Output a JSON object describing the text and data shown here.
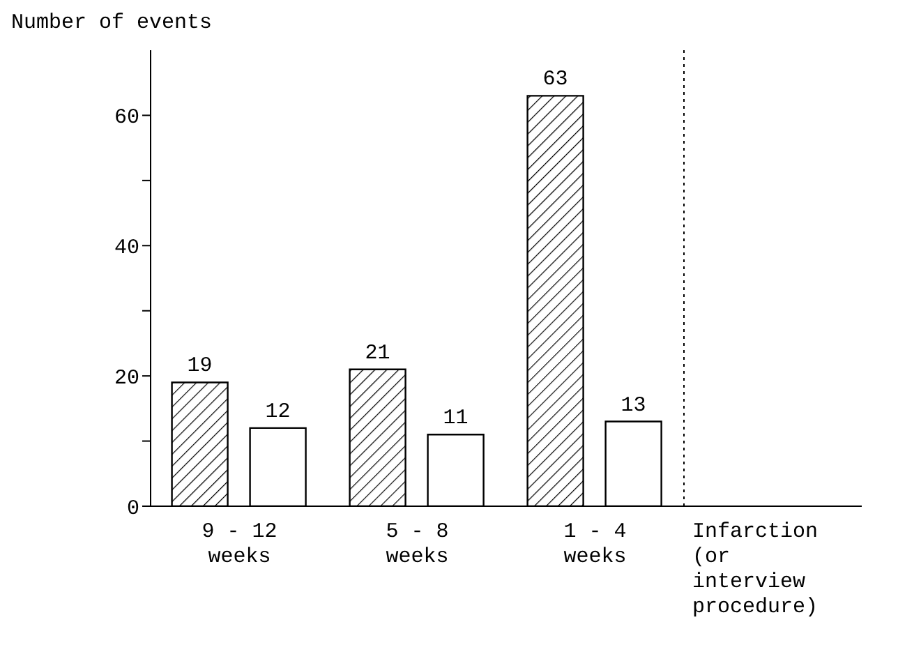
{
  "chart_data": {
    "type": "bar",
    "ylabel": "Number of events",
    "categories": [
      "9 - 12 weeks",
      "5 - 8 weeks",
      "1 - 4 weeks",
      "Infarction (or interview procedure)"
    ],
    "series": [
      {
        "color": "#000000",
        "values": [
          19,
          21,
          63,
          null
        ]
      },
      {
        "color": "#ffffff",
        "values": [
          12,
          11,
          13,
          null
        ]
      }
    ],
    "ylim": [
      0,
      70
    ],
    "yticks": [
      0,
      {
        "value": 10,
        "label": null
      },
      20,
      {
        "value": 30,
        "label": null
      },
      40,
      {
        "value": 50,
        "label": null
      },
      60
    ],
    "data_labels": true,
    "grid": false,
    "legend": false,
    "ref_lines": [
      {
        "axis": "x",
        "value": "Infarction (or interview procedure)",
        "line_style": "dotted",
        "color": "#000000"
      }
    ]
  }
}
